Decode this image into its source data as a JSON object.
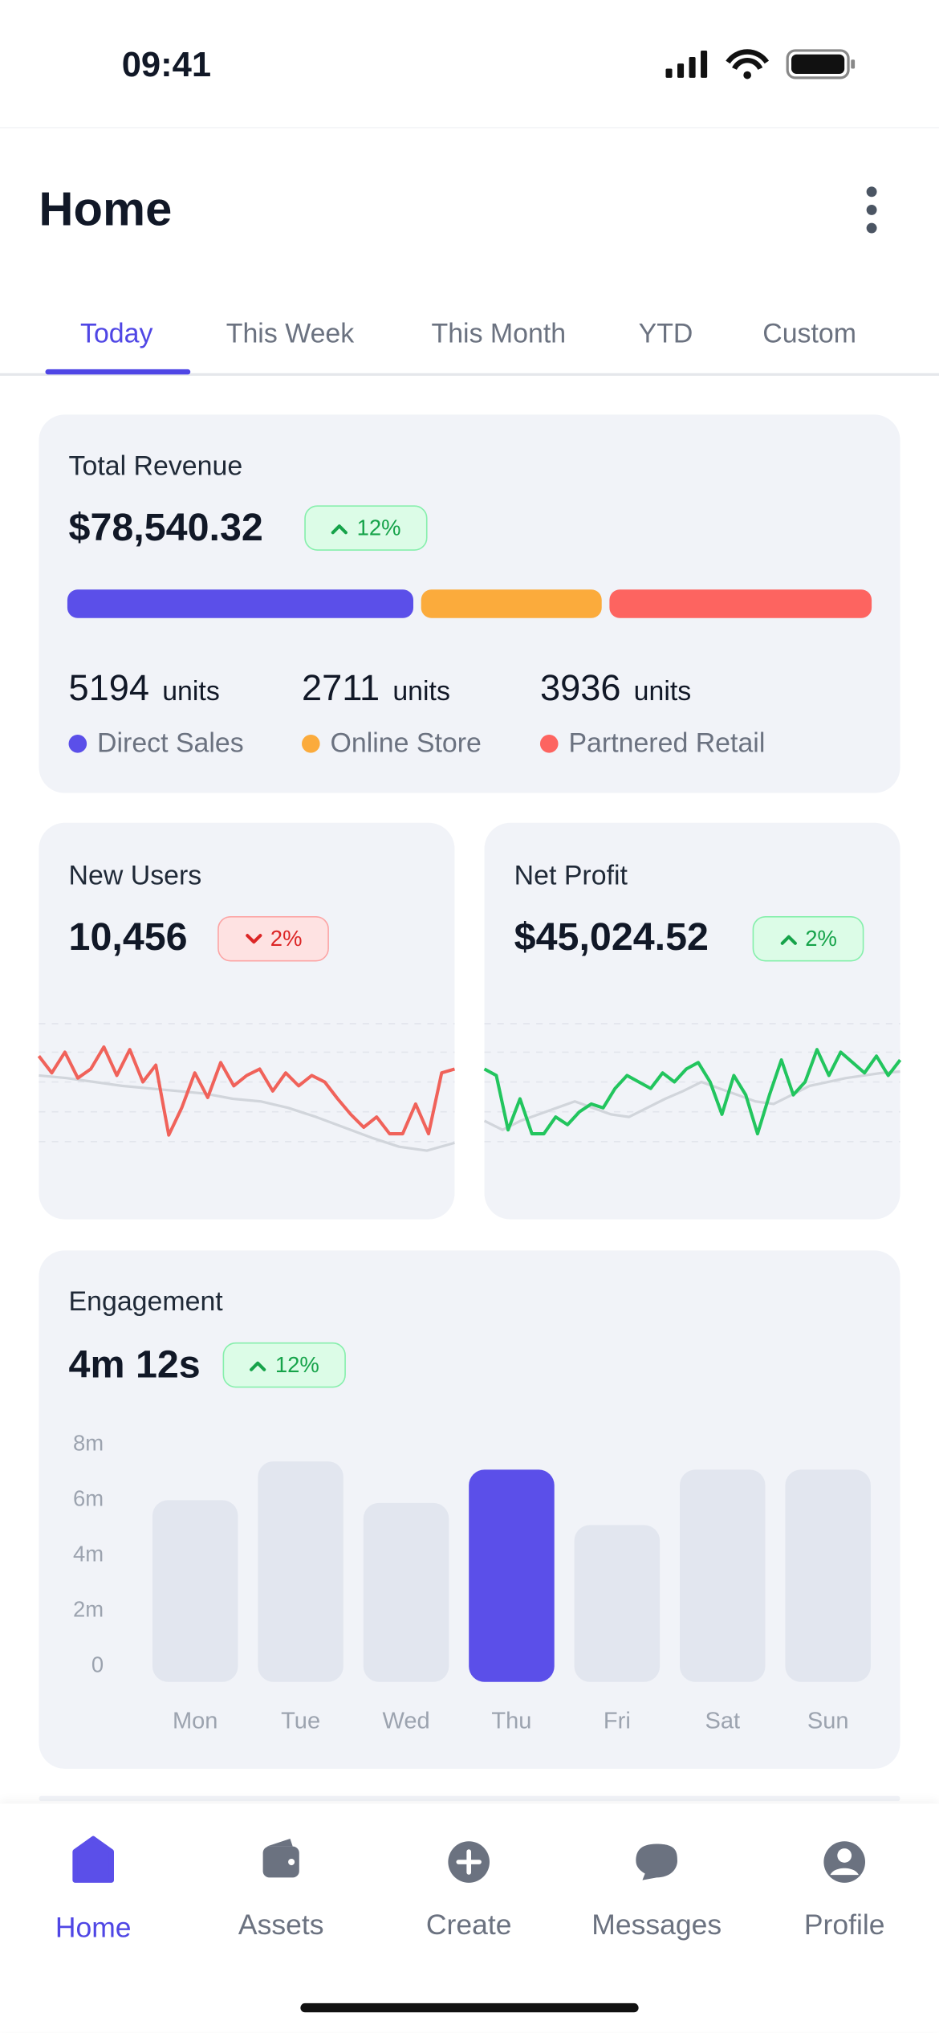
{
  "status_bar": {
    "time": "09:41"
  },
  "header": {
    "title": "Home"
  },
  "tabs": {
    "items": [
      "Today",
      "This Week",
      "This Month",
      "YTD",
      "Custom"
    ],
    "active": 0
  },
  "revenue_card": {
    "title": "Total Revenue",
    "amount": "$78,540.32",
    "change": "12%",
    "direction": "up",
    "segments": [
      {
        "units": 5194,
        "unit_label": "units",
        "label": "Direct Sales",
        "color": "#5b4fe9"
      },
      {
        "units": 2711,
        "unit_label": "units",
        "label": "Online Store",
        "color": "#fbab3c"
      },
      {
        "units": 3936,
        "unit_label": "units",
        "label": "Partnered Retail",
        "color": "#fd6460"
      }
    ]
  },
  "new_users_card": {
    "title": "New Users",
    "value": "10,456",
    "change": "2%",
    "direction": "down",
    "chart": {
      "type": "line",
      "ylim": [
        0,
        100
      ],
      "series": [
        {
          "color": "#d1d5db",
          "values": [
            60,
            58,
            55,
            52,
            50,
            48,
            46,
            42,
            40,
            35,
            28,
            20,
            12,
            5,
            2,
            8
          ]
        },
        {
          "color": "#f0625a",
          "values": [
            75,
            62,
            78,
            58,
            65,
            82,
            60,
            80,
            55,
            68,
            14,
            35,
            62,
            43,
            70,
            52,
            60,
            65,
            48,
            62,
            52,
            60,
            55,
            42,
            30,
            20,
            28,
            15,
            15,
            38,
            15,
            62,
            65
          ]
        }
      ]
    }
  },
  "net_profit_card": {
    "title": "Net Profit",
    "value": "$45,024.52",
    "change": "2%",
    "direction": "up",
    "chart": {
      "type": "line",
      "ylim": [
        0,
        100
      ],
      "series": [
        {
          "color": "#d1d5db",
          "values": [
            25,
            18,
            25,
            30,
            35,
            40,
            35,
            30,
            28,
            35,
            42,
            48,
            55,
            50,
            45,
            40,
            38,
            45,
            52,
            55,
            58,
            60,
            62,
            63
          ]
        },
        {
          "color": "#22c55e",
          "values": [
            65,
            60,
            18,
            42,
            15,
            15,
            28,
            22,
            32,
            38,
            35,
            50,
            60,
            55,
            50,
            62,
            55,
            65,
            70,
            55,
            30,
            60,
            45,
            15,
            45,
            72,
            45,
            55,
            80,
            60,
            78,
            70,
            62,
            75,
            60,
            72
          ]
        }
      ]
    }
  },
  "engagement_card": {
    "title": "Engagement",
    "value": "4m 12s",
    "change": "12%",
    "direction": "up",
    "chart": {
      "type": "bar",
      "categories": [
        "Mon",
        "Tue",
        "Wed",
        "Thu",
        "Fri",
        "Sat",
        "Sun"
      ],
      "values": [
        6.0,
        7.4,
        5.9,
        7.1,
        5.1,
        7.1,
        7.1
      ],
      "colors": [
        "#e2e6ef",
        "#e2e6ef",
        "#e2e6ef",
        "#5b4fe9",
        "#e2e6ef",
        "#e2e6ef",
        "#e2e6ef"
      ],
      "ylim": [
        0,
        8
      ],
      "yticks": [
        0,
        {
          "value": 2,
          "label": "2m"
        },
        {
          "value": 4,
          "label": "4m"
        },
        {
          "value": 6,
          "label": "6m"
        },
        {
          "value": 8,
          "label": "8m"
        }
      ]
    }
  },
  "nav": {
    "items": [
      "Home",
      "Assets",
      "Create",
      "Messages",
      "Profile"
    ],
    "active": 0
  }
}
